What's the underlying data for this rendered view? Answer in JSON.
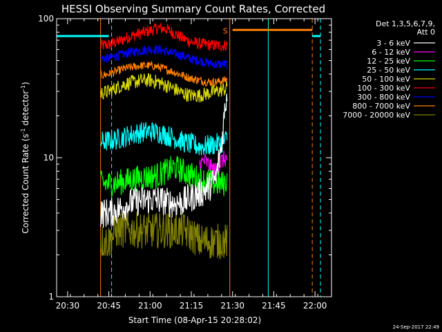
{
  "chart_data": {
    "type": "line",
    "title": "HESSI Observing Summary Count Rates, Corrected",
    "xlabel": "Start Time (08-Apr-15 20:28:02)",
    "ylabel": "Corrected Count Rate (s",
    "ylabel_sup1": "-1",
    "ylabel_mid": " detector",
    "ylabel_sup2": "-1",
    "ylabel_end": ")",
    "y_scale": "log",
    "ylim": [
      1,
      100
    ],
    "y_ticks": [
      {
        "value": 1,
        "label": "1"
      },
      {
        "value": 10,
        "label": "10"
      },
      {
        "value": 100,
        "label": "100"
      }
    ],
    "xlim": [
      "20:26",
      "22:06"
    ],
    "x_ticks": [
      "20:30",
      "20:45",
      "21:00",
      "21:15",
      "21:30",
      "21:45",
      "22:00"
    ],
    "legend": {
      "placement": "right",
      "header_line1": "Det 1,3,5,6,7,9,",
      "header_line2": "Att 0",
      "entries": [
        {
          "label": "3 - 6 keV",
          "color": "#ffffff"
        },
        {
          "label": "6 - 12 keV",
          "color": "#ff00ff"
        },
        {
          "label": "12 - 25 keV",
          "color": "#00ff00"
        },
        {
          "label": "25 - 50 keV",
          "color": "#00ffff"
        },
        {
          "label": "50 - 100 keV",
          "color": "#d8d800"
        },
        {
          "label": "100 - 300 keV",
          "color": "#ff0000"
        },
        {
          "label": "300 - 800 keV",
          "color": "#0000ff"
        },
        {
          "label": "800 - 7000 keV",
          "color": "#ff8000"
        },
        {
          "label": "7000 - 20000 keV",
          "color": "#808000"
        }
      ]
    },
    "series": [
      {
        "color": "#ff0000",
        "x": [
          "20:42",
          "20:45",
          "20:48",
          "20:51",
          "20:54",
          "20:57",
          "21:00",
          "21:03",
          "21:06",
          "21:09",
          "21:12",
          "21:15",
          "21:18",
          "21:21",
          "21:24",
          "21:27",
          "21:28"
        ],
        "values": [
          64,
          65,
          68,
          72,
          76,
          79,
          82,
          86,
          84,
          78,
          72,
          68,
          66,
          65,
          64,
          64,
          65
        ],
        "noise": 0.1
      },
      {
        "color": "#0000ff",
        "x": [
          "20:42",
          "20:45",
          "20:48",
          "20:51",
          "20:54",
          "20:57",
          "21:00",
          "21:03",
          "21:06",
          "21:09",
          "21:12",
          "21:15",
          "21:18",
          "21:21",
          "21:24",
          "21:27",
          "21:28"
        ],
        "values": [
          52,
          52,
          54,
          56,
          58,
          59,
          60,
          60,
          58,
          56,
          54,
          51,
          50,
          48,
          47,
          47,
          47
        ],
        "noise": 0.08
      },
      {
        "color": "#ff8000",
        "x": [
          "20:42",
          "20:45",
          "20:48",
          "20:51",
          "20:54",
          "20:57",
          "21:00",
          "21:03",
          "21:06",
          "21:09",
          "21:12",
          "21:15",
          "21:18",
          "21:21",
          "21:24",
          "21:27",
          "21:28"
        ],
        "values": [
          39,
          40,
          42,
          44,
          45,
          46,
          46,
          45,
          43,
          41,
          39,
          37,
          36,
          35,
          35,
          36,
          37
        ],
        "noise": 0.07
      },
      {
        "color": "#d8d800",
        "x": [
          "20:42",
          "20:45",
          "20:48",
          "20:51",
          "20:54",
          "20:57",
          "21:00",
          "21:03",
          "21:06",
          "21:09",
          "21:12",
          "21:15",
          "21:18",
          "21:21",
          "21:24",
          "21:27",
          "21:28"
        ],
        "values": [
          29,
          30,
          32,
          34,
          35,
          36,
          36,
          35,
          33,
          31,
          29,
          28,
          28,
          29,
          30,
          31,
          32
        ],
        "noise": 0.12
      },
      {
        "color": "#00ffff",
        "x": [
          "20:42",
          "20:45",
          "20:48",
          "20:51",
          "20:54",
          "20:57",
          "21:00",
          "21:03",
          "21:06",
          "21:09",
          "21:12",
          "21:15",
          "21:18",
          "21:21",
          "21:24",
          "21:27",
          "21:28"
        ],
        "values": [
          13,
          13.2,
          13.6,
          14.2,
          14.8,
          15.2,
          15.5,
          15.2,
          14.5,
          13.8,
          13,
          12.5,
          12,
          12.2,
          12.5,
          13,
          14
        ],
        "noise": 0.18
      },
      {
        "color": "#ff00ff",
        "x": [
          "21:18",
          "21:20",
          "21:22",
          "21:24",
          "21:26",
          "21:28"
        ],
        "values": [
          9,
          9.5,
          8.5,
          8,
          9.5,
          10
        ],
        "noise": 0.15
      },
      {
        "color": "#00ff00",
        "x": [
          "20:42",
          "20:45",
          "20:48",
          "20:51",
          "20:54",
          "20:57",
          "21:00",
          "21:03",
          "21:06",
          "21:09",
          "21:12",
          "21:15",
          "21:18",
          "21:21",
          "21:24",
          "21:27",
          "21:28"
        ],
        "values": [
          6.5,
          6.5,
          6.6,
          6.8,
          7,
          7.2,
          7.3,
          7.5,
          8,
          8.5,
          8,
          7.5,
          7,
          6.8,
          6.5,
          6.5,
          7
        ],
        "noise": 0.22
      },
      {
        "color": "#ffffff",
        "x": [
          "20:42",
          "20:45",
          "20:48",
          "20:51",
          "20:54",
          "20:57",
          "21:00",
          "21:03",
          "21:06",
          "21:09",
          "21:12",
          "21:15",
          "21:18",
          "21:21",
          "21:24",
          "21:26",
          "21:27",
          "21:28"
        ],
        "values": [
          4,
          4,
          4.2,
          4.5,
          4.8,
          4.9,
          5,
          5,
          4.8,
          4.7,
          4.8,
          5.2,
          5.5,
          6,
          7,
          12,
          20,
          30
        ],
        "noise": 0.25
      },
      {
        "color": "#808000",
        "x": [
          "20:42",
          "20:45",
          "20:48",
          "20:51",
          "20:54",
          "20:57",
          "21:00",
          "21:03",
          "21:06",
          "21:09",
          "21:12",
          "21:15",
          "21:18",
          "21:21",
          "21:24",
          "21:27",
          "21:28"
        ],
        "values": [
          2.5,
          2.5,
          3,
          3,
          3,
          3,
          3,
          3,
          3,
          3,
          3,
          2.8,
          2.5,
          2.5,
          2.5,
          2.5,
          2.5
        ],
        "noise": 0.3
      }
    ],
    "top_bars": [
      {
        "color": "#00ffff",
        "x_start": "20:26",
        "x_end": "20:45",
        "value": 75
      },
      {
        "color": "#ff8000",
        "x_start": "21:30",
        "x_end": "21:59",
        "value": 83
      },
      {
        "color": "#00ffff",
        "x_start": "21:59",
        "x_end": "22:02",
        "value": 75
      }
    ],
    "flag_label": {
      "text": "S",
      "color": "#ff8000",
      "x": "21:29"
    },
    "vertical_markers": [
      {
        "x": "20:26",
        "color": "#00ffff",
        "style": "solid"
      },
      {
        "x": "20:42",
        "color": "#ff8000",
        "style": "solid"
      },
      {
        "x": "20:46",
        "color": "#00ffff",
        "style": "dashed"
      },
      {
        "x": "21:29",
        "color": "#ff8000",
        "style": "solid"
      },
      {
        "x": "21:43",
        "color": "#00ffff",
        "style": "solid"
      },
      {
        "x": "21:59",
        "color": "#ff8000",
        "style": "dashed"
      },
      {
        "x": "22:02",
        "color": "#00ffff",
        "style": "dashed"
      }
    ],
    "date_stamp": "24-Sep-2017 22:49"
  }
}
